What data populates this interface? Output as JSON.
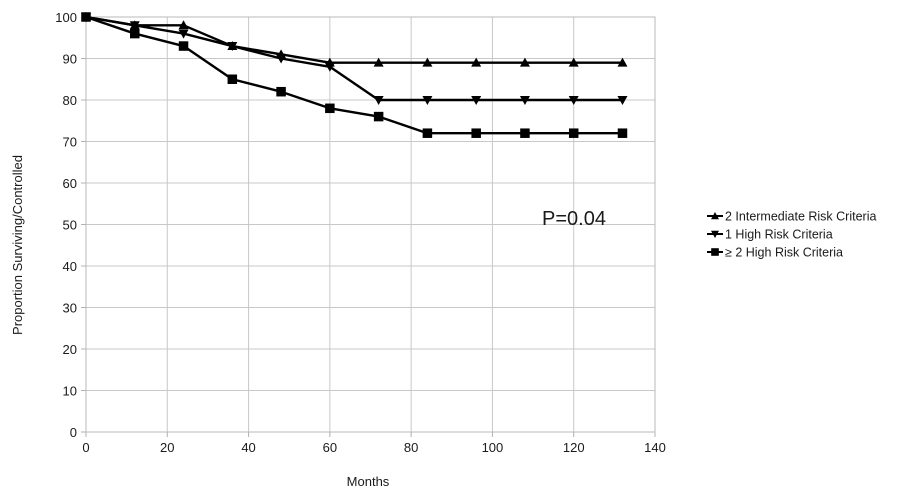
{
  "chart_data": {
    "type": "line",
    "title": "",
    "xlabel": "Months",
    "ylabel": "Proportion Surviving/Controlled",
    "xlim": [
      0,
      140
    ],
    "ylim": [
      0,
      100
    ],
    "x_ticks": [
      0,
      20,
      40,
      60,
      80,
      100,
      120,
      140
    ],
    "y_ticks": [
      0,
      10,
      20,
      30,
      40,
      50,
      60,
      70,
      80,
      90,
      100
    ],
    "grid": true,
    "legend_position": "right",
    "annotation": "P=0.04",
    "x": [
      0,
      12,
      24,
      36,
      48,
      60,
      72,
      84,
      96,
      108,
      120,
      132
    ],
    "series": [
      {
        "name": "2 Intermediate Risk Criteria",
        "marker": "triangle-up",
        "color": "#000000",
        "values": [
          100,
          98,
          98,
          93,
          91,
          89,
          89,
          89,
          89,
          89,
          89,
          89
        ]
      },
      {
        "name": "1 High Risk Criteria",
        "marker": "triangle-down",
        "color": "#000000",
        "values": [
          100,
          98,
          96,
          93,
          90,
          88,
          80,
          80,
          80,
          80,
          80,
          80
        ]
      },
      {
        "name": "≥ 2 High Risk Criteria",
        "marker": "square",
        "color": "#000000",
        "values": [
          100,
          96,
          93,
          85,
          82,
          78,
          76,
          72,
          72,
          72,
          72,
          72
        ]
      }
    ]
  }
}
